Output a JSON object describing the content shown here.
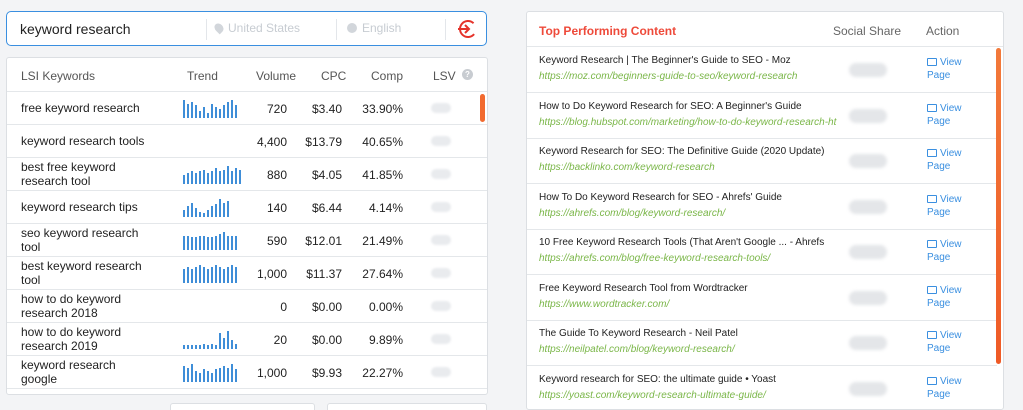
{
  "search": {
    "query": "keyword research",
    "location": "United States",
    "language": "English"
  },
  "lsi": {
    "headers": {
      "keyword": "LSI Keywords",
      "trend": "Trend",
      "volume": "Volume",
      "cpc": "CPC",
      "comp": "Comp",
      "lsv": "LSV"
    },
    "rows": [
      {
        "keyword": "free keyword research",
        "trend": [
          10,
          8,
          9,
          7,
          4,
          6,
          3,
          8,
          6,
          5,
          7,
          9,
          10,
          7
        ],
        "volume": "720",
        "cpc": "$3.40",
        "comp": "33.90%"
      },
      {
        "keyword": "keyword research tools",
        "trend": [],
        "volume": "4,400",
        "cpc": "$13.79",
        "comp": "40.65%"
      },
      {
        "keyword": "best free keyword research tool",
        "trend": [
          5,
          6,
          7,
          6,
          7,
          8,
          6,
          7,
          9,
          7,
          8,
          10,
          7,
          9,
          8
        ],
        "volume": "880",
        "cpc": "$4.05",
        "comp": "41.85%"
      },
      {
        "keyword": "keyword research tips",
        "trend": [
          4,
          6,
          8,
          5,
          3,
          2,
          4,
          6,
          7,
          10,
          8,
          9
        ],
        "volume": "140",
        "cpc": "$6.44",
        "comp": "4.14%"
      },
      {
        "keyword": "seo keyword research tool",
        "trend": [
          8,
          8,
          7,
          7,
          8,
          8,
          7,
          7,
          8,
          9,
          10,
          8,
          8,
          8
        ],
        "volume": "590",
        "cpc": "$12.01",
        "comp": "21.49%"
      },
      {
        "keyword": "best keyword research tool",
        "trend": [
          8,
          9,
          8,
          9,
          10,
          9,
          8,
          9,
          10,
          9,
          8,
          9,
          10,
          9
        ],
        "volume": "1,000",
        "cpc": "$11.37",
        "comp": "27.64%"
      },
      {
        "keyword": "how to do keyword research 2018",
        "trend": [],
        "volume": "0",
        "cpc": "$0.00",
        "comp": "0.00%"
      },
      {
        "keyword": "how to do keyword research 2019",
        "trend": [
          2,
          2,
          2,
          2,
          2,
          3,
          2,
          3,
          2,
          9,
          6,
          10,
          5,
          3
        ],
        "volume": "20",
        "cpc": "$0.00",
        "comp": "9.89%"
      },
      {
        "keyword": "keyword research google",
        "trend": [
          9,
          8,
          10,
          6,
          5,
          7,
          6,
          5,
          7,
          8,
          9,
          8,
          10,
          7
        ],
        "volume": "1,000",
        "cpc": "$9.93",
        "comp": "22.27%"
      }
    ]
  },
  "top": {
    "headers": {
      "title": "Top Performing Content",
      "social": "Social Share",
      "action": "Action"
    },
    "view_label": "View Page",
    "rows": [
      {
        "title": "Keyword Research | The Beginner's Guide to SEO - Moz",
        "url": "https://moz.com/beginners-guide-to-seo/keyword-research"
      },
      {
        "title": "How to Do Keyword Research for SEO: A Beginner's Guide",
        "url": "https://blog.hubspot.com/marketing/how-to-do-keyword-research-ht"
      },
      {
        "title": "Keyword Research for SEO: The Definitive Guide (2020 Update)",
        "url": "https://backlinko.com/keyword-research"
      },
      {
        "title": "How To Do Keyword Research for SEO - Ahrefs' Guide",
        "url": "https://ahrefs.com/blog/keyword-research/"
      },
      {
        "title": "10 Free Keyword Research Tools (That Aren't Google ... - Ahrefs",
        "url": "https://ahrefs.com/blog/free-keyword-research-tools/"
      },
      {
        "title": "Free Keyword Research Tool from Wordtracker",
        "url": "https://www.wordtracker.com/"
      },
      {
        "title": "The Guide To Keyword Research - Neil Patel",
        "url": "https://neilpatel.com/blog/keyword-research/"
      },
      {
        "title": "Keyword research for SEO: the ultimate guide • Yoast",
        "url": "https://yoast.com/keyword-research-ultimate-guide/"
      }
    ]
  },
  "colors": {
    "accent_blue": "#3a8fe0",
    "accent_red": "#ee4a3a",
    "url_green": "#7ab648",
    "scroll_orange": "#f26a2f"
  }
}
